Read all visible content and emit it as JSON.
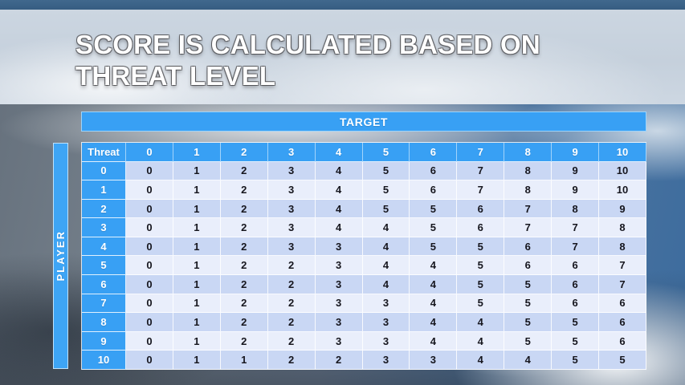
{
  "title": {
    "line1": "SCORE IS CALCULATED BASED ON",
    "line2": "THREAT LEVEL"
  },
  "labels": {
    "target": "TARGET",
    "player": "PLAYER"
  },
  "table": {
    "corner_label": "Threat",
    "column_headers": [
      "0",
      "1",
      "2",
      "3",
      "4",
      "5",
      "6",
      "7",
      "8",
      "9",
      "10"
    ],
    "rows": [
      {
        "threat": "0",
        "values": [
          "0",
          "1",
          "2",
          "3",
          "4",
          "5",
          "6",
          "7",
          "8",
          "9",
          "10"
        ]
      },
      {
        "threat": "1",
        "values": [
          "0",
          "1",
          "2",
          "3",
          "4",
          "5",
          "6",
          "7",
          "8",
          "9",
          "10"
        ]
      },
      {
        "threat": "2",
        "values": [
          "0",
          "1",
          "2",
          "3",
          "4",
          "5",
          "5",
          "6",
          "7",
          "8",
          "9"
        ]
      },
      {
        "threat": "3",
        "values": [
          "0",
          "1",
          "2",
          "3",
          "4",
          "4",
          "5",
          "6",
          "7",
          "7",
          "8"
        ]
      },
      {
        "threat": "4",
        "values": [
          "0",
          "1",
          "2",
          "3",
          "3",
          "4",
          "5",
          "5",
          "6",
          "7",
          "8"
        ]
      },
      {
        "threat": "5",
        "values": [
          "0",
          "1",
          "2",
          "2",
          "3",
          "4",
          "4",
          "5",
          "6",
          "6",
          "7"
        ]
      },
      {
        "threat": "6",
        "values": [
          "0",
          "1",
          "2",
          "2",
          "3",
          "4",
          "4",
          "5",
          "5",
          "6",
          "7"
        ]
      },
      {
        "threat": "7",
        "values": [
          "0",
          "1",
          "2",
          "2",
          "3",
          "3",
          "4",
          "5",
          "5",
          "6",
          "6"
        ]
      },
      {
        "threat": "8",
        "values": [
          "0",
          "1",
          "2",
          "2",
          "3",
          "3",
          "4",
          "4",
          "5",
          "5",
          "6"
        ]
      },
      {
        "threat": "9",
        "values": [
          "0",
          "1",
          "2",
          "2",
          "3",
          "3",
          "4",
          "4",
          "5",
          "5",
          "6"
        ]
      },
      {
        "threat": "10",
        "values": [
          "0",
          "1",
          "1",
          "2",
          "2",
          "3",
          "3",
          "4",
          "4",
          "5",
          "5"
        ]
      }
    ]
  },
  "colors": {
    "accent_blue": "#38A0F4",
    "row_shade_dark": "#C9D7F4",
    "row_shade_light": "#E9EEFB",
    "cell_text": "#16161E",
    "top_strip_blue": "#3B6186",
    "banner_grey_blue": "#C8D3DF",
    "title_text": "#FFFFFF"
  }
}
